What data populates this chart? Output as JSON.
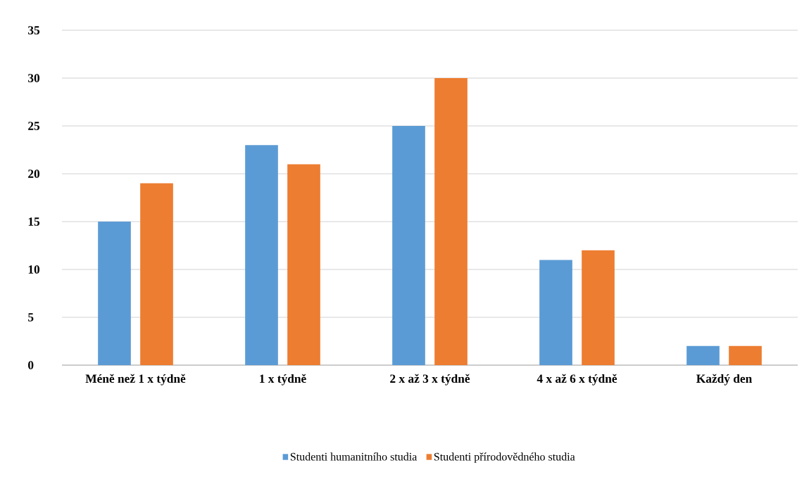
{
  "chart_data": {
    "type": "bar",
    "categories": [
      "Méně než 1 x týdně",
      "1 x týdně",
      "2 x až 3 x týdně",
      "4 x až 6 x týdně",
      "Každý den"
    ],
    "series": [
      {
        "name": "Studenti humanitního studia",
        "color": "#5b9bd5",
        "values": [
          15,
          23,
          25,
          11,
          2
        ]
      },
      {
        "name": "Studenti přírodovědného studia",
        "color": "#ed7d31",
        "values": [
          19,
          21,
          30,
          12,
          2
        ]
      }
    ],
    "ylim": [
      0,
      35
    ],
    "yticks": [
      0,
      5,
      10,
      15,
      20,
      25,
      30,
      35
    ],
    "grid": "y",
    "legend": "bottom"
  }
}
